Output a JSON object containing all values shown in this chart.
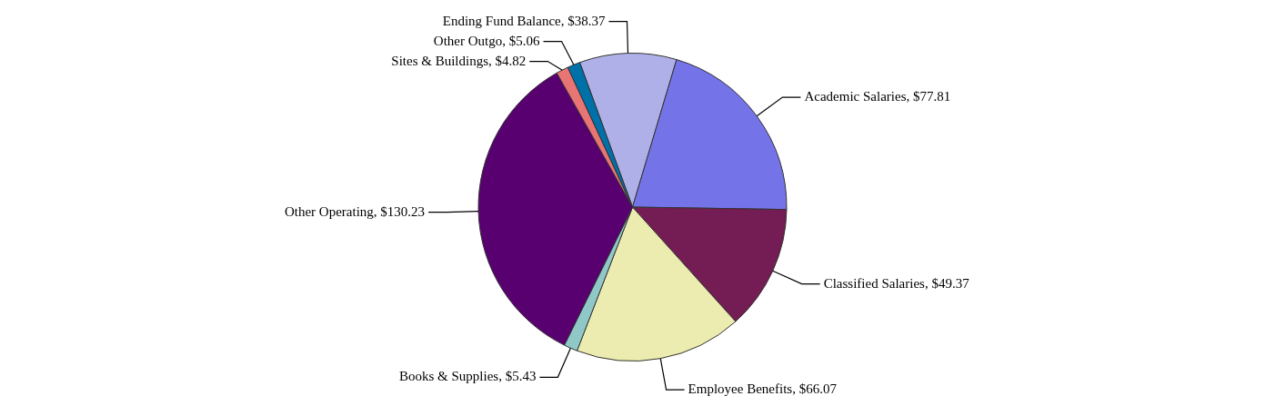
{
  "chart_data": {
    "type": "pie",
    "categories": [
      "Ending Fund Balance",
      "Academic Salaries",
      "Classified Salaries",
      "Employee Benefits",
      "Books & Supplies",
      "Other Operating",
      "Sites & Buildings",
      "Other Outgo"
    ],
    "values": [
      38.37,
      77.81,
      49.37,
      66.07,
      5.43,
      130.23,
      4.82,
      5.06
    ],
    "value_labels": [
      "$38.37",
      "$77.81",
      "$49.37",
      "$66.07",
      "$5.43",
      "$130.23",
      "$4.82",
      "$5.06"
    ],
    "colors": [
      "#b0b0e8",
      "#7474e8",
      "#741c54",
      "#ececb0",
      "#90c8c8",
      "#580070",
      "#e87474",
      "#0070a8"
    ],
    "legend": false
  }
}
